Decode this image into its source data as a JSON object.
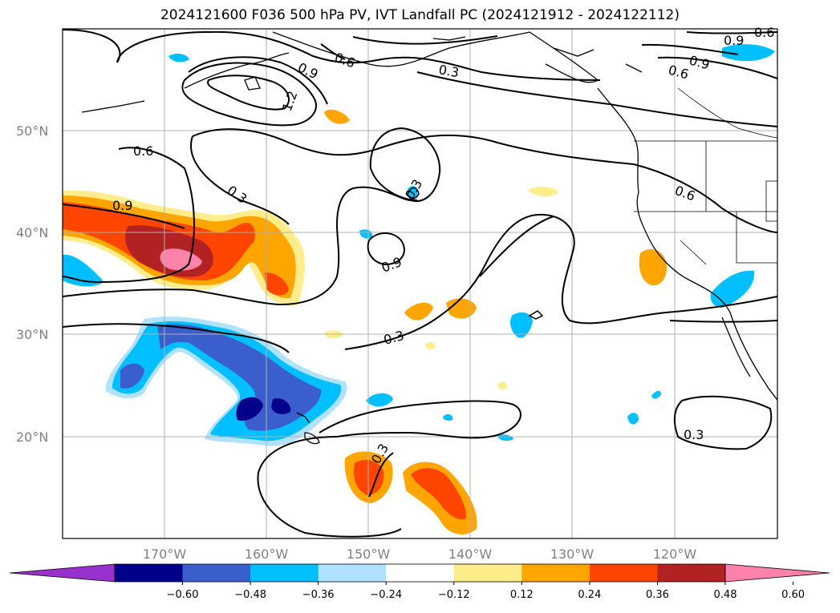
{
  "title": "2024121600 F036 500 hPa PV, IVT Landfall PC (2024121912 - 2024122112)",
  "lat_labels": [
    "50°N",
    "40°N",
    "30°N",
    "20°N"
  ],
  "lon_labels": [
    "170°W",
    "160°W",
    "150°W",
    "140°W",
    "130°W",
    "120°W"
  ],
  "colorbar": {
    "ticks": [
      "−0.60",
      "−0.48",
      "−0.36",
      "−0.24",
      "−0.12",
      "0.12",
      "0.24",
      "0.36",
      "0.48",
      "0.60"
    ],
    "colors": [
      "#9932cc",
      "#00008b",
      "#3a5fcd",
      "#00bfff",
      "#b0e2ff",
      "#ffffff",
      "#ffec8b",
      "#ffa500",
      "#ff4500",
      "#b22222",
      "#ff82ab"
    ]
  },
  "contour_labels": [
    "0.9",
    "0.6",
    "0.3",
    "0.9",
    "0.6",
    "1.2",
    "0.9",
    "0.6",
    "0.9",
    "0.3",
    "0.3",
    "0.9",
    "0.3",
    "0.3",
    "0.6",
    "0.3",
    "0.6"
  ]
}
